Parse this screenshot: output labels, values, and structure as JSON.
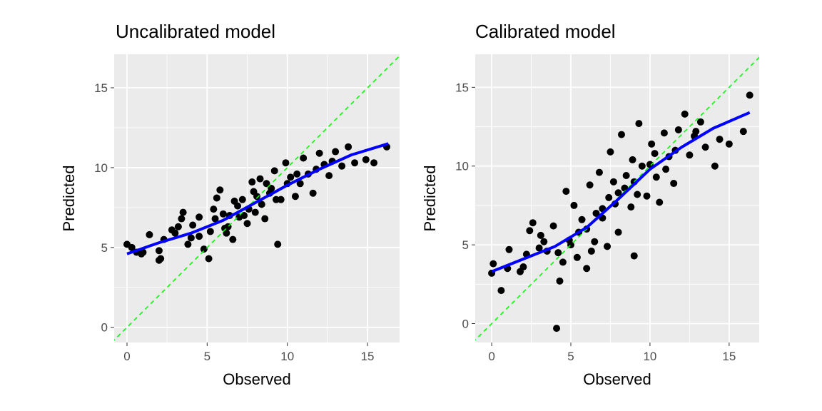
{
  "chart_data": [
    {
      "type": "scatter",
      "title": "Uncalibrated model",
      "xlabel": "Observed",
      "ylabel": "Predicted",
      "xlim": [
        -0.8,
        17.0
      ],
      "ylim": [
        -0.95,
        17.1
      ],
      "xticks": [
        0,
        5,
        10,
        15
      ],
      "yticks": [
        0,
        5,
        10,
        15
      ],
      "grid": true,
      "reference_line": {
        "slope": 1,
        "intercept": 0,
        "style": "dashed",
        "color": "#00ff00"
      },
      "smooth_color": "#0000ff",
      "point_color": "#000000",
      "smooth": [
        [
          0,
          4.6
        ],
        [
          2,
          5.3
        ],
        [
          4,
          5.9
        ],
        [
          6,
          6.7
        ],
        [
          8,
          7.8
        ],
        [
          10,
          8.9
        ],
        [
          12,
          9.9
        ],
        [
          14,
          10.8
        ],
        [
          16.3,
          11.5
        ]
      ],
      "points": [
        [
          0,
          5.2
        ],
        [
          0.3,
          5.0
        ],
        [
          0.6,
          4.7
        ],
        [
          0.9,
          4.6
        ],
        [
          1.4,
          5.8
        ],
        [
          2,
          4.8
        ],
        [
          2.1,
          4.3
        ],
        [
          2.3,
          5.5
        ],
        [
          2.8,
          6.1
        ],
        [
          3.4,
          6.8
        ],
        [
          3.5,
          7.2
        ],
        [
          3.8,
          5.2
        ],
        [
          4.1,
          6.4
        ],
        [
          4.5,
          5.7
        ],
        [
          4.8,
          4.9
        ],
        [
          5.1,
          4.3
        ],
        [
          5.4,
          7.4
        ],
        [
          5.6,
          8.1
        ],
        [
          5.8,
          8.6
        ],
        [
          6.1,
          6.2
        ],
        [
          6.4,
          7.0
        ],
        [
          6.6,
          5.5
        ],
        [
          6.9,
          7.6
        ],
        [
          7.2,
          8.0
        ],
        [
          7.5,
          6.5
        ],
        [
          7.8,
          9.1
        ],
        [
          8.0,
          7.2
        ],
        [
          8.3,
          9.3
        ],
        [
          8.6,
          6.8
        ],
        [
          8.9,
          8.4
        ],
        [
          9.2,
          9.8
        ],
        [
          9.4,
          5.2
        ],
        [
          9.6,
          8.0
        ],
        [
          9.9,
          10.3
        ],
        [
          10.2,
          9.4
        ],
        [
          10.5,
          8.2
        ],
        [
          10.8,
          9.0
        ],
        [
          11.0,
          10.6
        ],
        [
          11.3,
          9.6
        ],
        [
          11.6,
          8.4
        ],
        [
          12.0,
          10.9
        ],
        [
          12.3,
          10.2
        ],
        [
          12.6,
          9.5
        ],
        [
          13.0,
          11.0
        ],
        [
          13.4,
          10.1
        ],
        [
          13.8,
          11.3
        ],
        [
          14.2,
          10.3
        ],
        [
          14.9,
          10.5
        ],
        [
          15.4,
          10.3
        ],
        [
          16.2,
          11.3
        ],
        [
          3.0,
          5.9
        ],
        [
          4.5,
          6.9
        ],
        [
          6.0,
          7.1
        ],
        [
          7.0,
          6.9
        ],
        [
          9.0,
          8.7
        ],
        [
          5.2,
          6.0
        ],
        [
          6.3,
          6.3
        ],
        [
          7.6,
          7.4
        ],
        [
          8.1,
          8.2
        ],
        [
          10.0,
          9.0
        ],
        [
          2.0,
          4.2
        ],
        [
          1.0,
          4.7
        ],
        [
          3.2,
          6.3
        ],
        [
          4.0,
          5.6
        ],
        [
          5.5,
          6.8
        ],
        [
          6.7,
          7.9
        ],
        [
          7.3,
          7.0
        ],
        [
          8.4,
          7.7
        ],
        [
          9.3,
          8.0
        ],
        [
          10.6,
          9.6
        ],
        [
          11.8,
          9.9
        ],
        [
          12.8,
          10.4
        ],
        [
          6.2,
          5.9
        ],
        [
          7.9,
          8.5
        ],
        [
          8.7,
          9.0
        ]
      ]
    },
    {
      "type": "scatter",
      "title": "Calibrated model",
      "xlabel": "Observed",
      "ylabel": "Predicted",
      "xlim": [
        -1.04,
        16.9
      ],
      "ylim": [
        -1.2,
        17.1
      ],
      "xticks": [
        0,
        5,
        10,
        15
      ],
      "yticks": [
        0,
        5,
        10,
        15
      ],
      "grid": true,
      "reference_line": {
        "slope": 1,
        "intercept": 0,
        "style": "dashed",
        "color": "#00ff00"
      },
      "smooth_color": "#0000ff",
      "point_color": "#000000",
      "smooth": [
        [
          0,
          3.3
        ],
        [
          2,
          4.1
        ],
        [
          4,
          4.9
        ],
        [
          6,
          6.1
        ],
        [
          8,
          7.9
        ],
        [
          10,
          9.8
        ],
        [
          12,
          11.2
        ],
        [
          14,
          12.4
        ],
        [
          16.3,
          13.4
        ]
      ],
      "points": [
        [
          0,
          3.2
        ],
        [
          0.1,
          3.8
        ],
        [
          0.6,
          2.1
        ],
        [
          1.1,
          4.7
        ],
        [
          1.8,
          3.3
        ],
        [
          2.2,
          4.4
        ],
        [
          2.4,
          5.9
        ],
        [
          2.6,
          6.4
        ],
        [
          3.1,
          5.6
        ],
        [
          3.5,
          4.6
        ],
        [
          3.9,
          6.2
        ],
        [
          4.1,
          -0.3
        ],
        [
          4.3,
          2.7
        ],
        [
          4.5,
          3.9
        ],
        [
          4.7,
          8.4
        ],
        [
          4.9,
          5.3
        ],
        [
          5.2,
          7.5
        ],
        [
          5.4,
          4.2
        ],
        [
          5.7,
          6.6
        ],
        [
          6.0,
          3.5
        ],
        [
          6.2,
          8.8
        ],
        [
          6.5,
          5.2
        ],
        [
          6.8,
          9.6
        ],
        [
          7.0,
          6.7
        ],
        [
          7.3,
          4.9
        ],
        [
          7.5,
          10.9
        ],
        [
          7.8,
          7.6
        ],
        [
          8.0,
          5.8
        ],
        [
          8.2,
          12.0
        ],
        [
          8.5,
          9.4
        ],
        [
          8.8,
          7.4
        ],
        [
          9.0,
          4.3
        ],
        [
          9.3,
          12.7
        ],
        [
          9.5,
          10.0
        ],
        [
          9.8,
          8.1
        ],
        [
          10.1,
          11.4
        ],
        [
          10.4,
          9.3
        ],
        [
          10.6,
          7.7
        ],
        [
          10.9,
          12.1
        ],
        [
          11.2,
          10.6
        ],
        [
          11.5,
          8.9
        ],
        [
          11.8,
          12.3
        ],
        [
          12.2,
          13.3
        ],
        [
          12.5,
          10.7
        ],
        [
          12.8,
          11.9
        ],
        [
          13.2,
          12.8
        ],
        [
          13.5,
          11.2
        ],
        [
          14.1,
          10.0
        ],
        [
          14.4,
          11.7
        ],
        [
          15.0,
          11.4
        ],
        [
          15.9,
          12.2
        ],
        [
          16.3,
          14.5
        ],
        [
          3.0,
          4.8
        ],
        [
          5.0,
          5.0
        ],
        [
          6.0,
          6.0
        ],
        [
          7.0,
          7.3
        ],
        [
          8.0,
          8.3
        ],
        [
          9.0,
          9.0
        ],
        [
          10.0,
          10.1
        ],
        [
          11.0,
          9.8
        ],
        [
          2.0,
          3.6
        ],
        [
          1.0,
          3.5
        ],
        [
          3.3,
          5.2
        ],
        [
          4.2,
          4.5
        ],
        [
          5.5,
          5.8
        ],
        [
          6.6,
          7.0
        ],
        [
          7.4,
          8.0
        ],
        [
          8.4,
          8.6
        ],
        [
          9.2,
          8.2
        ],
        [
          10.3,
          10.8
        ],
        [
          11.6,
          11.0
        ],
        [
          12.9,
          12.2
        ],
        [
          6.3,
          4.6
        ],
        [
          7.7,
          9.0
        ],
        [
          8.9,
          10.4
        ]
      ]
    }
  ]
}
